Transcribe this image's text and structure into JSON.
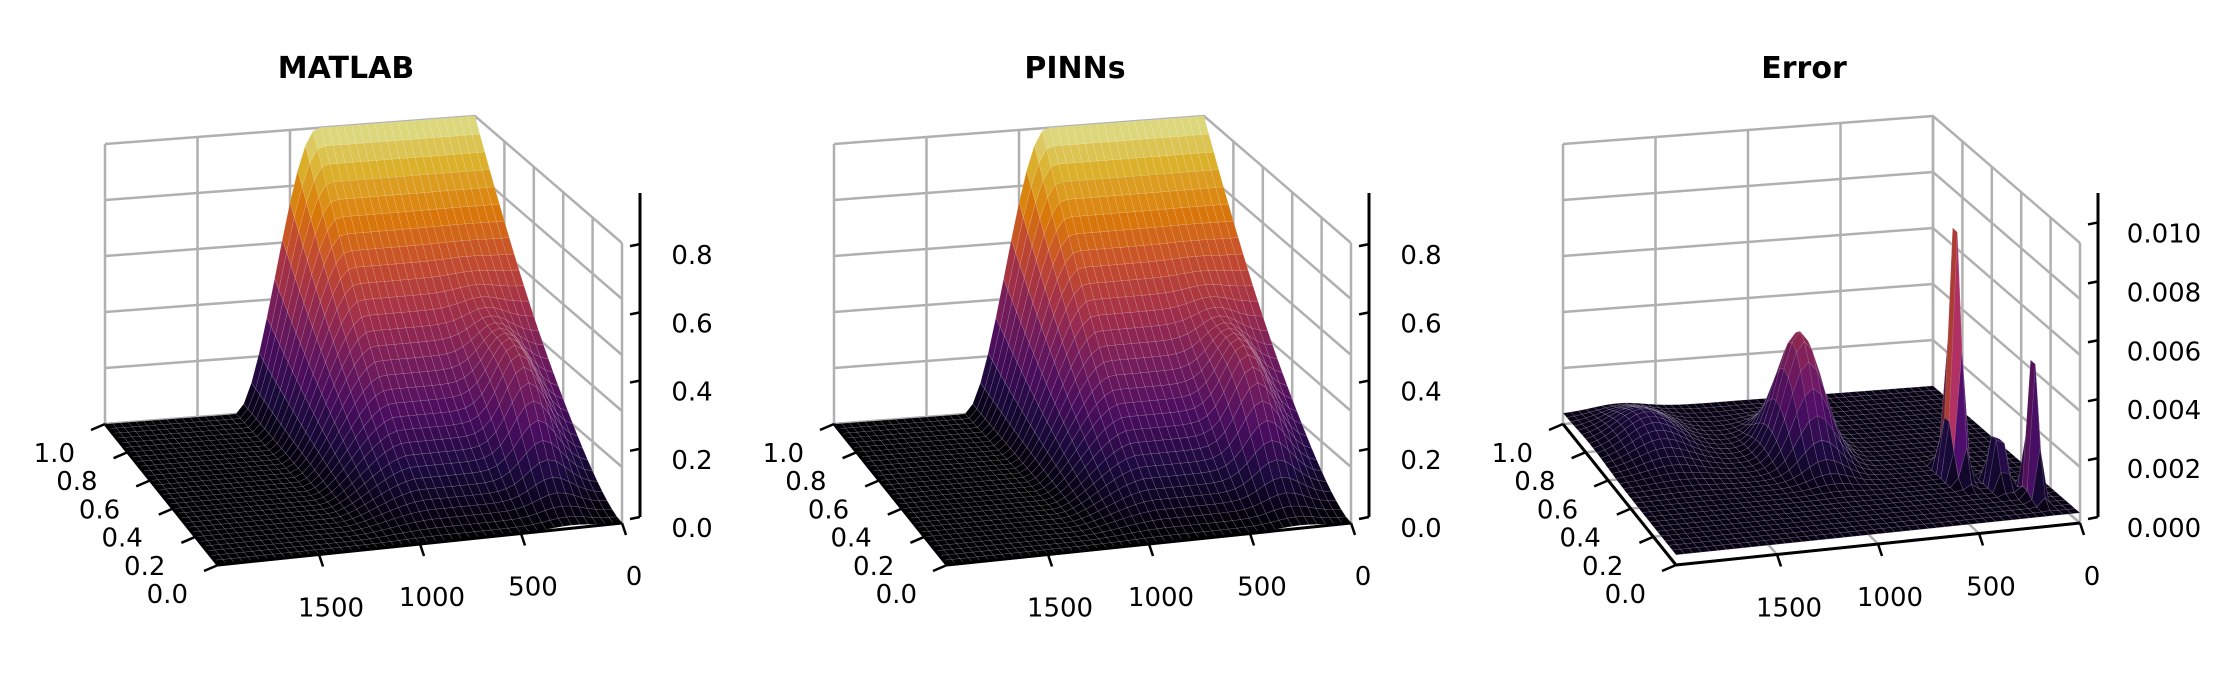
{
  "chart_data": [
    {
      "type": "surface",
      "title": "MATLAB",
      "x_ticks": [
        "1.0",
        "0.8",
        "0.6",
        "0.4",
        "0.2",
        "0.0"
      ],
      "t_ticks": [
        "1500",
        "1000",
        "500",
        "0"
      ],
      "z_ticks": [
        "0.0",
        "0.2",
        "0.4",
        "0.6",
        "0.8"
      ],
      "t_range": [
        0,
        2000
      ],
      "x_range": [
        0,
        1
      ],
      "zlim": [
        0,
        0.95
      ],
      "colormap": "inferno",
      "grid": true,
      "profile": "front",
      "front_t": 1000,
      "front_x": 0.55,
      "plateau": 0.95
    },
    {
      "type": "surface",
      "title": "PINNs",
      "x_ticks": [
        "1.0",
        "0.8",
        "0.6",
        "0.4",
        "0.2",
        "0.0"
      ],
      "t_ticks": [
        "1500",
        "1000",
        "500",
        "0"
      ],
      "z_ticks": [
        "0.0",
        "0.2",
        "0.4",
        "0.6",
        "0.8"
      ],
      "t_range": [
        0,
        2000
      ],
      "x_range": [
        0,
        1
      ],
      "zlim": [
        0,
        0.95
      ],
      "colormap": "inferno",
      "grid": true,
      "profile": "front",
      "front_t": 1000,
      "front_x": 0.55,
      "plateau": 0.95
    },
    {
      "type": "surface",
      "title": "Error",
      "x_ticks": [
        "1.0",
        "0.8",
        "0.6",
        "0.4",
        "0.2",
        "0.0"
      ],
      "t_ticks": [
        "1500",
        "1000",
        "500",
        "0"
      ],
      "z_ticks": [
        "0.000",
        "0.002",
        "0.004",
        "0.006",
        "0.008",
        "0.010"
      ],
      "t_range": [
        0,
        2000
      ],
      "x_range": [
        0,
        1
      ],
      "zlim": [
        0,
        0.011
      ],
      "colormap": "inferno",
      "grid": true,
      "profile": "error",
      "peaks": [
        {
          "t": 380,
          "x": 0.35,
          "z": 0.0107,
          "wt": 30,
          "wx": 0.06
        },
        {
          "t": 1000,
          "x": 0.6,
          "z": 0.0048,
          "wt": 140,
          "wx": 0.15
        },
        {
          "t": 130,
          "x": 0.15,
          "z": 0.0062,
          "wt": 22,
          "wx": 0.05
        },
        {
          "t": 230,
          "x": 0.25,
          "z": 0.0035,
          "wt": 28,
          "wx": 0.05
        },
        {
          "t": 1700,
          "x": 0.75,
          "z": 0.0012,
          "wt": 200,
          "wx": 0.2
        }
      ]
    }
  ]
}
